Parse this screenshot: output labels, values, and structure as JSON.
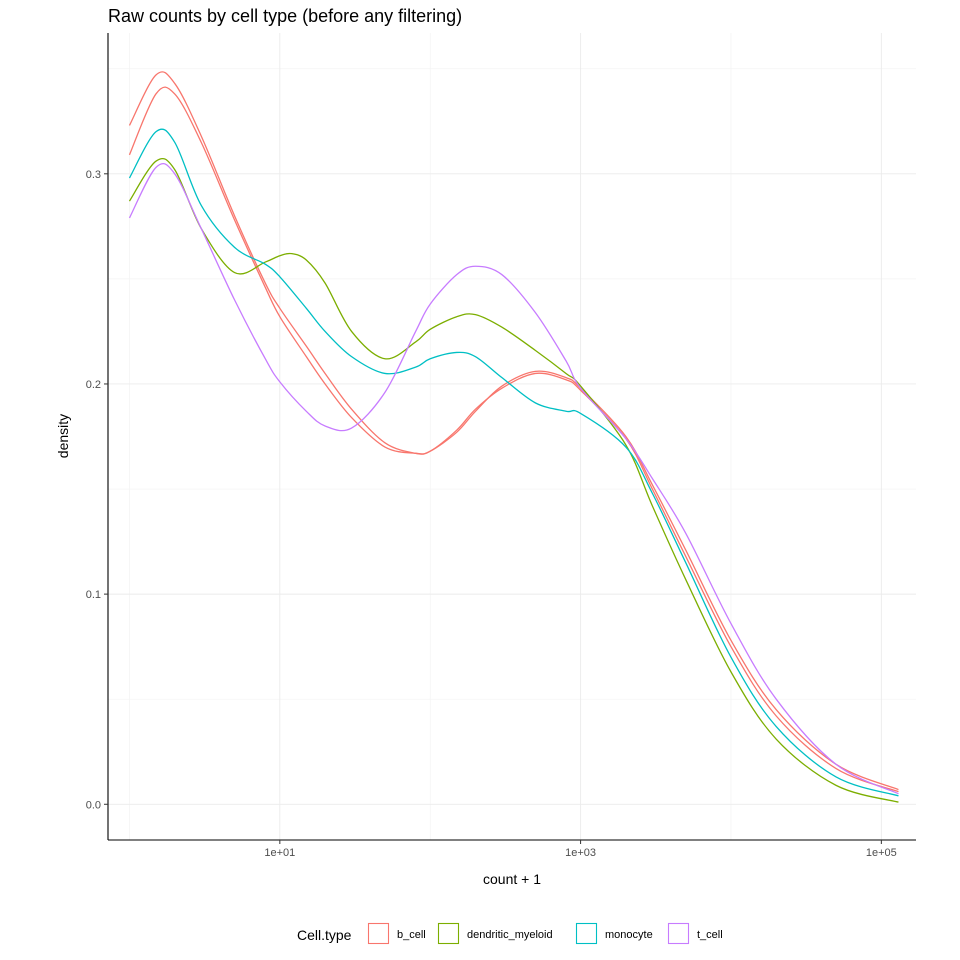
{
  "chart_data": {
    "type": "line",
    "title": "Raw counts by cell type (before any filtering)",
    "xlabel": "count + 1",
    "ylabel": "density",
    "x_scale": "log10",
    "xlim": [
      0.72,
      170000
    ],
    "ylim": [
      -0.017,
      0.367
    ],
    "x_ticks": [
      10,
      1000,
      100000
    ],
    "x_tick_labels": [
      "1e+01",
      "1e+03",
      "1e+05"
    ],
    "y_ticks": [
      0.0,
      0.1,
      0.2,
      0.3
    ],
    "y_tick_labels": [
      "0.0",
      "0.1",
      "0.2",
      "0.3"
    ],
    "grid": true,
    "legend": {
      "title": "Cell.type",
      "position": "bottom"
    },
    "series": [
      {
        "name": "b_cell",
        "color": "#F8766D",
        "x": [
          1,
          1.5,
          2,
          3,
          5,
          8,
          10,
          15,
          20,
          30,
          50,
          80,
          100,
          150,
          200,
          300,
          500,
          800,
          1000,
          2000,
          3000,
          5000,
          10000,
          20000,
          50000,
          130000
        ],
        "y": [
          0.323,
          0.347,
          0.343,
          0.318,
          0.28,
          0.248,
          0.236,
          0.218,
          0.205,
          0.188,
          0.172,
          0.167,
          0.168,
          0.177,
          0.187,
          0.199,
          0.206,
          0.203,
          0.198,
          0.175,
          0.152,
          0.121,
          0.078,
          0.045,
          0.019,
          0.007
        ]
      },
      {
        "name": "b_cell",
        "color": "#F8766D",
        "x": [
          1,
          1.5,
          2,
          3,
          5,
          8,
          10,
          15,
          20,
          30,
          50,
          80,
          100,
          150,
          200,
          300,
          500,
          800,
          1000,
          2000,
          3000,
          5000,
          10000,
          20000,
          50000,
          130000
        ],
        "y": [
          0.309,
          0.338,
          0.338,
          0.315,
          0.278,
          0.246,
          0.232,
          0.213,
          0.2,
          0.184,
          0.17,
          0.167,
          0.168,
          0.178,
          0.188,
          0.198,
          0.205,
          0.202,
          0.197,
          0.174,
          0.15,
          0.118,
          0.075,
          0.042,
          0.017,
          0.006
        ]
      },
      {
        "name": "dendritic_myeloid",
        "color": "#7CAE00",
        "x": [
          1,
          1.5,
          2,
          3,
          5,
          8,
          10,
          12,
          15,
          20,
          30,
          50,
          80,
          100,
          150,
          200,
          300,
          500,
          800,
          1000,
          2000,
          3000,
          5000,
          10000,
          20000,
          50000,
          130000
        ],
        "y": [
          0.287,
          0.306,
          0.302,
          0.274,
          0.253,
          0.258,
          0.261,
          0.262,
          0.259,
          0.248,
          0.225,
          0.212,
          0.22,
          0.226,
          0.232,
          0.233,
          0.227,
          0.216,
          0.205,
          0.199,
          0.171,
          0.142,
          0.107,
          0.063,
          0.031,
          0.009,
          0.001
        ]
      },
      {
        "name": "monocyte",
        "color": "#00BFC4",
        "x": [
          1,
          1.5,
          2,
          3,
          5,
          8,
          10,
          15,
          20,
          30,
          50,
          80,
          100,
          150,
          200,
          300,
          500,
          800,
          1000,
          2000,
          3000,
          5000,
          10000,
          20000,
          50000,
          130000
        ],
        "y": [
          0.298,
          0.32,
          0.315,
          0.285,
          0.265,
          0.257,
          0.251,
          0.236,
          0.225,
          0.213,
          0.205,
          0.208,
          0.212,
          0.215,
          0.213,
          0.203,
          0.191,
          0.187,
          0.186,
          0.17,
          0.148,
          0.115,
          0.07,
          0.037,
          0.013,
          0.004
        ]
      },
      {
        "name": "t_cell",
        "color": "#C77CFF",
        "x": [
          1,
          1.5,
          2,
          3,
          5,
          8,
          10,
          15,
          20,
          30,
          50,
          80,
          100,
          150,
          200,
          300,
          500,
          800,
          1000,
          2000,
          3000,
          5000,
          10000,
          20000,
          50000,
          130000
        ],
        "y": [
          0.279,
          0.303,
          0.3,
          0.274,
          0.24,
          0.212,
          0.201,
          0.187,
          0.18,
          0.179,
          0.196,
          0.225,
          0.238,
          0.252,
          0.256,
          0.252,
          0.234,
          0.211,
          0.198,
          0.174,
          0.155,
          0.129,
          0.086,
          0.05,
          0.019,
          0.005
        ]
      }
    ]
  },
  "legend_entries": [
    {
      "label": "b_cell",
      "color": "#F8766D"
    },
    {
      "label": "dendritic_myeloid",
      "color": "#7CAE00"
    },
    {
      "label": "monocyte",
      "color": "#00BFC4"
    },
    {
      "label": "t_cell",
      "color": "#C77CFF"
    }
  ]
}
